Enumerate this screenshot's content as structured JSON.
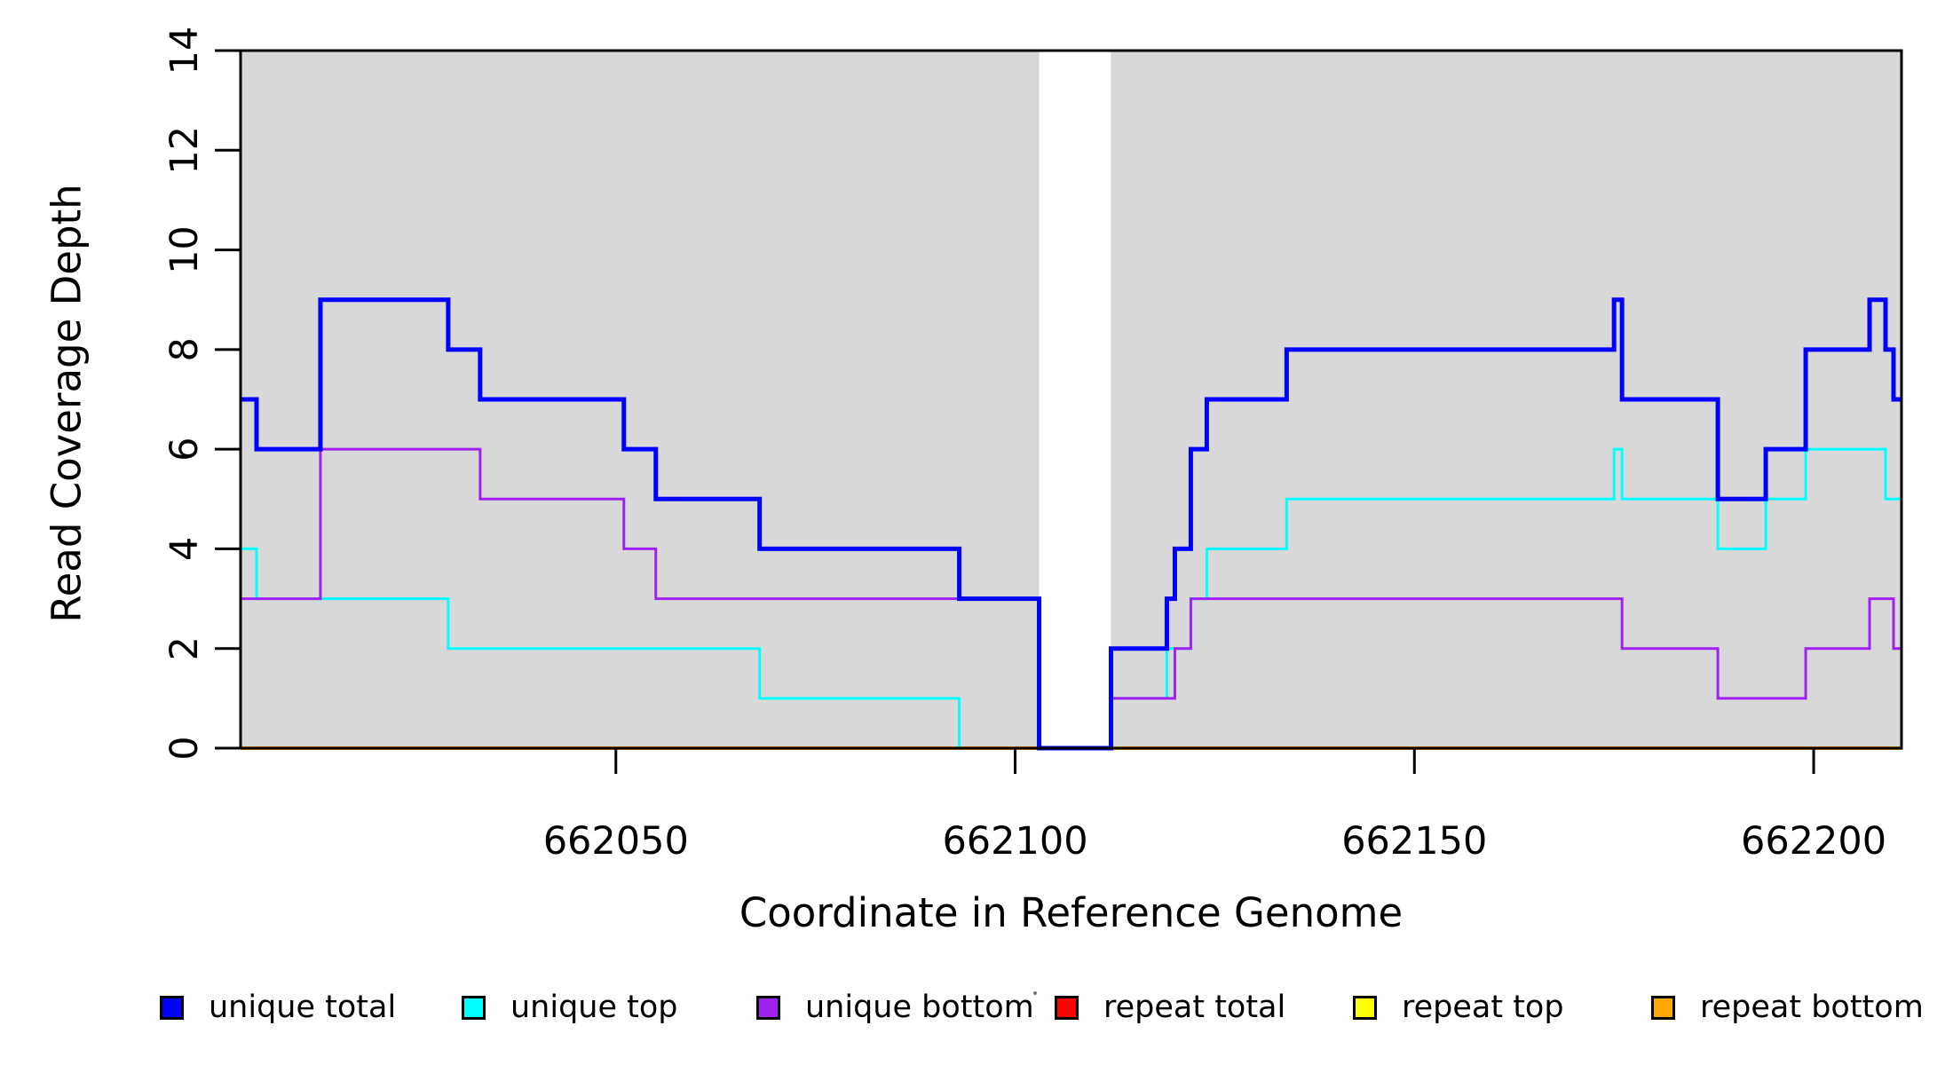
{
  "figure": {
    "background": "#ffffff",
    "plot_background_shaded": "#d8d8d8",
    "box_color": "#000000"
  },
  "chart_data": {
    "type": "line",
    "subtype": "step-coverage",
    "title": "",
    "xlabel": "Coordinate in Reference Genome",
    "ylabel": "Read Coverage Depth",
    "xlim": [
      662003,
      662211
    ],
    "ylim": [
      0,
      14
    ],
    "x_ticks": [
      662050,
      662100,
      662150,
      662200
    ],
    "y_ticks": [
      0,
      2,
      4,
      6,
      8,
      10,
      12,
      14
    ],
    "grid": false,
    "legend_position": "bottom-horizontal",
    "shaded_regions": [
      {
        "x_start": 662003,
        "x_end": 662103
      },
      {
        "x_start": 662112,
        "x_end": 662211
      }
    ],
    "series": [
      {
        "name": "repeat total",
        "color": "#FF0000",
        "line_width": 3,
        "points": [
          [
            662003,
            0
          ]
        ]
      },
      {
        "name": "repeat top",
        "color": "#FFFF00",
        "line_width": 3,
        "points": [
          [
            662003,
            0
          ]
        ]
      },
      {
        "name": "repeat bottom",
        "color": "#FFA500",
        "line_width": 4,
        "points": [
          [
            662003,
            0
          ]
        ]
      },
      {
        "name": "unique top",
        "color": "#00FFFF",
        "line_width": 3,
        "points": [
          [
            662003,
            4
          ],
          [
            662005,
            3
          ],
          [
            662029,
            2
          ],
          [
            662068,
            1
          ],
          [
            662093,
            0
          ],
          [
            662112,
            1
          ],
          [
            662119,
            2
          ],
          [
            662122,
            3
          ],
          [
            662124,
            4
          ],
          [
            662134,
            5
          ],
          [
            662175,
            6
          ],
          [
            662176,
            5
          ],
          [
            662188,
            4
          ],
          [
            662194,
            5
          ],
          [
            662199,
            6
          ],
          [
            662209,
            5
          ]
        ]
      },
      {
        "name": "unique bottom",
        "color": "#A020F0",
        "line_width": 3,
        "points": [
          [
            662003,
            3
          ],
          [
            662013,
            6
          ],
          [
            662033,
            5
          ],
          [
            662051,
            4
          ],
          [
            662055,
            3
          ],
          [
            662103,
            0
          ],
          [
            662112,
            1
          ],
          [
            662120,
            2
          ],
          [
            662122,
            3
          ],
          [
            662176,
            2
          ],
          [
            662188,
            1
          ],
          [
            662199,
            2
          ],
          [
            662207,
            3
          ],
          [
            662210,
            2
          ]
        ]
      },
      {
        "name": "unique total",
        "color": "#0000FF",
        "line_width": 5,
        "points": [
          [
            662003,
            7
          ],
          [
            662005,
            6
          ],
          [
            662013,
            9
          ],
          [
            662029,
            8
          ],
          [
            662033,
            7
          ],
          [
            662051,
            6
          ],
          [
            662055,
            5
          ],
          [
            662068,
            4
          ],
          [
            662093,
            3
          ],
          [
            662103,
            0
          ],
          [
            662112,
            2
          ],
          [
            662119,
            3
          ],
          [
            662120,
            4
          ],
          [
            662122,
            6
          ],
          [
            662124,
            7
          ],
          [
            662134,
            8
          ],
          [
            662175,
            9
          ],
          [
            662176,
            7
          ],
          [
            662188,
            5
          ],
          [
            662194,
            6
          ],
          [
            662199,
            8
          ],
          [
            662207,
            9
          ],
          [
            662209,
            8
          ],
          [
            662210,
            7
          ]
        ]
      }
    ]
  },
  "legend": {
    "items": [
      {
        "label": "unique total",
        "color": "#0000FF"
      },
      {
        "label": "unique top",
        "color": "#00FFFF"
      },
      {
        "label": "unique bottom",
        "color": "#A020F0"
      },
      {
        "label": "repeat total",
        "color": "#FF0000"
      },
      {
        "label": "repeat top",
        "color": "#FFFF00"
      },
      {
        "label": "repeat bottom",
        "color": "#FFA500"
      }
    ]
  }
}
